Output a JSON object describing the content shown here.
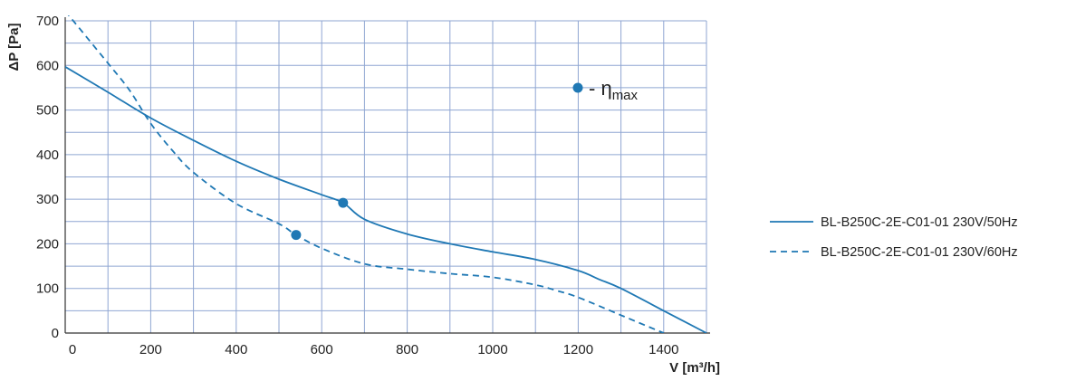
{
  "chart_data": {
    "type": "line",
    "xlabel": "V [m³/h]",
    "ylabel": "ΔP [Pa]",
    "xlim": [
      0,
      1500
    ],
    "ylim": [
      0,
      700
    ],
    "x_ticks": [
      0,
      200,
      400,
      600,
      800,
      1000,
      1200,
      1400
    ],
    "y_ticks": [
      0,
      100,
      200,
      300,
      400,
      500,
      600,
      700
    ],
    "x_grid_step": 100,
    "y_grid_step": 50,
    "grid": true,
    "legend_position": "right",
    "line_color": "#1f78b4",
    "grid_color": "#8fa6d2",
    "series": [
      {
        "name": "BL-B250C-2E-C01-01 230V/50Hz",
        "style": "solid",
        "x": [
          0,
          100,
          200,
          300,
          400,
          500,
          600,
          650,
          700,
          800,
          900,
          1000,
          1100,
          1200,
          1250,
          1300,
          1400,
          1500
        ],
        "y": [
          597,
          540,
          482,
          432,
          385,
          345,
          310,
          292,
          255,
          222,
          200,
          182,
          165,
          140,
          120,
          100,
          50,
          0
        ]
      },
      {
        "name": "BL-B250C-2E-C01-01 230V/60Hz",
        "style": "dashed",
        "x": [
          0,
          100,
          150,
          200,
          250,
          300,
          400,
          500,
          540,
          600,
          700,
          800,
          900,
          1000,
          1100,
          1150,
          1200,
          1300,
          1400
        ],
        "y": [
          722,
          605,
          545,
          470,
          410,
          360,
          290,
          245,
          220,
          190,
          155,
          143,
          133,
          125,
          108,
          95,
          80,
          40,
          0
        ]
      }
    ],
    "markers": [
      {
        "x": 650,
        "y": 292
      },
      {
        "x": 540,
        "y": 220
      }
    ],
    "annotation": {
      "prefix": "- η",
      "subscript": "max"
    }
  }
}
